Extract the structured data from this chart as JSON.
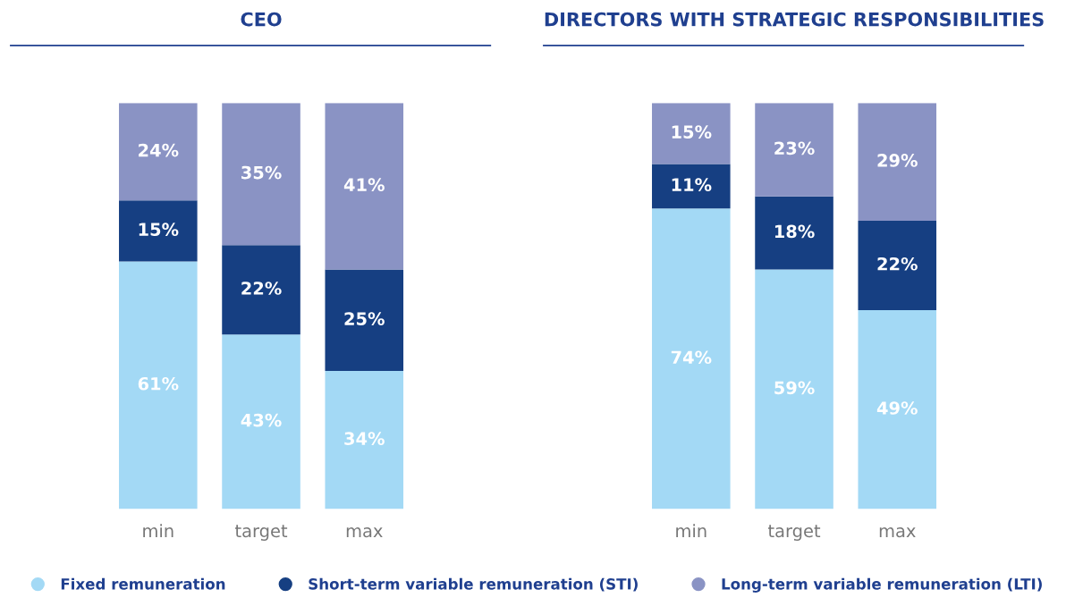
{
  "chart_data": [
    {
      "type": "bar",
      "title": "CEO",
      "stacked": true,
      "legend": "bottom",
      "tick_labels": "x",
      "categories": [
        "min",
        "target",
        "max"
      ],
      "series": [
        {
          "name": "Fixed remuneration",
          "color": "#a3d9f5",
          "values": [
            61,
            43,
            34
          ],
          "value_labels": [
            "61%",
            "43%",
            "34%"
          ]
        },
        {
          "name": "Short-term variable remuneration (STI)",
          "color": "#163f82",
          "values": [
            15,
            22,
            25
          ],
          "value_labels": [
            "15%",
            "22%",
            "25%"
          ]
        },
        {
          "name": "Long-term variable remuneration (LTI)",
          "color": "#8a93c4",
          "values": [
            24,
            35,
            41
          ],
          "value_labels": [
            "24%",
            "35%",
            "41%"
          ]
        }
      ]
    },
    {
      "type": "bar",
      "title": "DIRECTORS WITH STRATEGIC RESPONSIBILITIES",
      "stacked": true,
      "tick_labels": "x",
      "categories": [
        "min",
        "target",
        "max"
      ],
      "series": [
        {
          "color": "#a3d9f5",
          "values": [
            74,
            59,
            49
          ],
          "value_labels": [
            "74%",
            "59%",
            "49%"
          ]
        },
        {
          "color": "#163f82",
          "values": [
            11,
            18,
            22
          ],
          "value_labels": [
            "11%",
            "18%",
            "22%"
          ]
        },
        {
          "color": "#8a93c4",
          "values": [
            15,
            23,
            29
          ],
          "value_labels": [
            "15%",
            "23%",
            "29%"
          ]
        }
      ]
    }
  ]
}
